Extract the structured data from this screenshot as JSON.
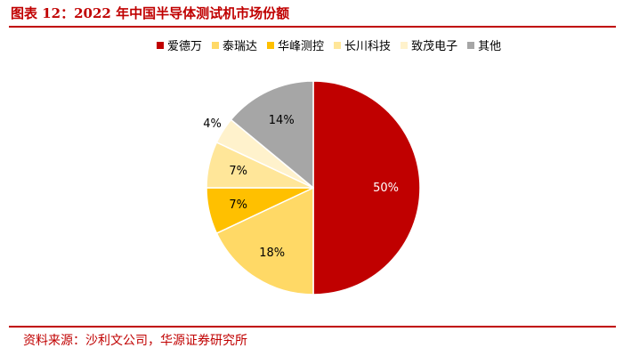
{
  "header": {
    "title": "图表 12：2022 年中国半导体测试机市场份额"
  },
  "footer": {
    "source": "资料来源：沙利文公司，华源证券研究所"
  },
  "chart_data": {
    "type": "pie",
    "categories": [
      "爱德万",
      "泰瑞达",
      "华峰测控",
      "长川科技",
      "致茂电子",
      "其他"
    ],
    "values": [
      50,
      18,
      7,
      7,
      4,
      14
    ],
    "labels": [
      "50%",
      "18%",
      "7%",
      "7%",
      "4%",
      "14%"
    ],
    "colors": [
      "#c00000",
      "#ffd966",
      "#ffc000",
      "#ffe699",
      "#fff2cc",
      "#a6a6a6"
    ],
    "label_colors": [
      "#ffffff",
      "#000000",
      "#000000",
      "#000000",
      "#000000",
      "#000000"
    ],
    "legend_position": "top",
    "start_angle": "12 o'clock",
    "direction": "clockwise"
  }
}
